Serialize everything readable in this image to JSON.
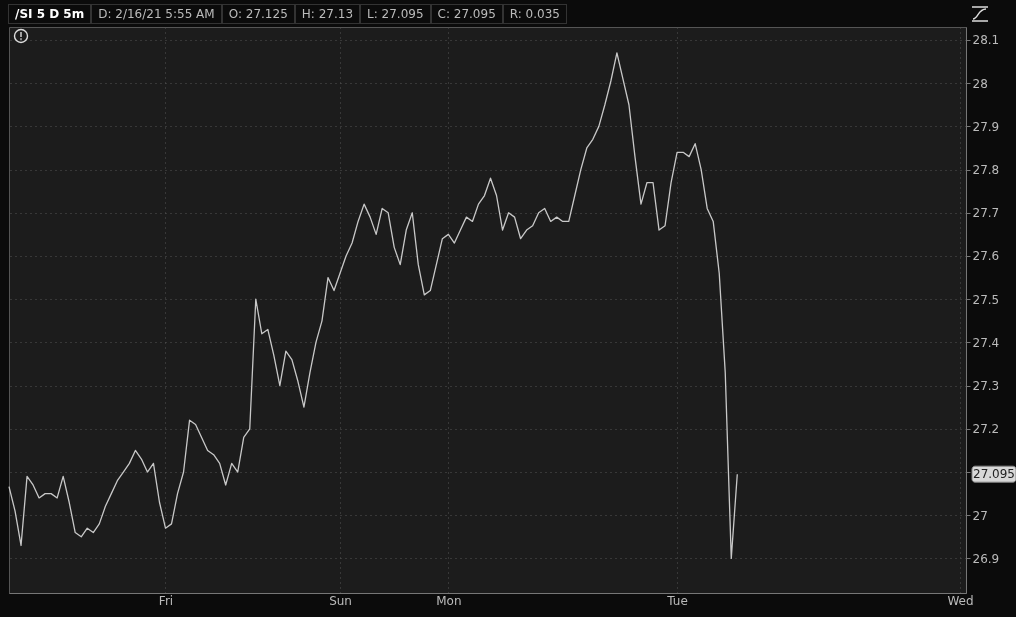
{
  "chart_data": {
    "type": "line",
    "title": "/SI 5 D 5m",
    "subtitle": "D: 2/16/21 5:55 AM  O: 27.125  H: 27.13  L: 27.095  C: 27.095  R: 0.035",
    "categories": [
      null,
      null,
      null,
      null,
      null,
      null,
      null,
      null,
      null,
      null,
      null,
      null,
      null,
      null,
      null,
      null,
      null,
      null,
      null,
      null,
      null,
      null,
      null,
      null,
      null,
      null,
      "Fri",
      null,
      null,
      null,
      null,
      null,
      null,
      null,
      null,
      null,
      null,
      null,
      null,
      null,
      null,
      null,
      null,
      null,
      null,
      null,
      null,
      null,
      null,
      null,
      null,
      null,
      null,
      null,
      null,
      "Sun",
      null,
      null,
      null,
      null,
      null,
      null,
      null,
      null,
      null,
      null,
      null,
      null,
      null,
      null,
      null,
      null,
      null,
      "Mon",
      null,
      null,
      null,
      null,
      null,
      null,
      null,
      null,
      null,
      null,
      null,
      null,
      null,
      null,
      null,
      null,
      null,
      null,
      null,
      null,
      null,
      null,
      null,
      null,
      null,
      null,
      null,
      null,
      null,
      null,
      null,
      null,
      null,
      null,
      null,
      null,
      null,
      "Tue",
      null,
      null,
      null,
      null,
      null,
      null,
      null,
      null,
      null,
      null,
      null,
      null,
      null,
      null,
      null,
      null,
      null,
      null,
      null,
      null,
      null,
      null,
      null,
      null,
      null,
      null,
      null,
      null,
      null,
      null,
      null,
      null,
      null,
      null,
      null,
      null,
      null,
      null,
      null,
      null,
      null,
      null,
      null,
      null,
      null,
      null,
      "Wed",
      null
    ],
    "series": [
      {
        "color": "#c8c8c8",
        "values": [
          27.066,
          27.01,
          26.93,
          27.09,
          27.07,
          27.04,
          27.05,
          27.05,
          27.04,
          27.09,
          27.03,
          26.96,
          26.95,
          26.97,
          26.96,
          26.98,
          27.02,
          27.05,
          27.08,
          27.1,
          27.12,
          27.15,
          27.13,
          27.1,
          27.12,
          27.03,
          26.97,
          26.98,
          27.05,
          27.1,
          27.22,
          27.21,
          27.18,
          27.15,
          27.14,
          27.12,
          27.07,
          27.12,
          27.1,
          27.18,
          27.2,
          27.5,
          27.42,
          27.43,
          27.37,
          27.3,
          27.38,
          27.36,
          27.31,
          27.25,
          27.33,
          27.4,
          27.45,
          27.55,
          27.52,
          27.56,
          27.6,
          27.63,
          27.68,
          27.72,
          27.69,
          27.65,
          27.71,
          27.7,
          27.62,
          27.58,
          27.66,
          27.7,
          27.58,
          27.51,
          27.52,
          27.58,
          27.64,
          27.65,
          27.63,
          27.66,
          27.69,
          27.68,
          27.72,
          27.74,
          27.78,
          27.74,
          27.66,
          27.7,
          27.69,
          27.64,
          27.66,
          27.67,
          27.7,
          27.71,
          27.68,
          27.69,
          27.68,
          27.68,
          27.74,
          27.8,
          27.85,
          27.87,
          27.9,
          27.95,
          28.005,
          28.07,
          28.01,
          27.95,
          27.83,
          27.72,
          27.77,
          27.77,
          27.66,
          27.67,
          27.77,
          27.84,
          27.84,
          27.83,
          27.86,
          27.8,
          27.71,
          27.68,
          27.56,
          27.33,
          26.9,
          27.095,
          null,
          null,
          null,
          null,
          null,
          null,
          null,
          null,
          null,
          null,
          null,
          null,
          null,
          null,
          null,
          null,
          null,
          null,
          null,
          null,
          null,
          null,
          null,
          null,
          null,
          null,
          null,
          null,
          null,
          null,
          null,
          null,
          null,
          null,
          null,
          null,
          null,
          null
        ]
      }
    ],
    "ylim": [
      26.82,
      28.13
    ],
    "yticks": [
      26.9,
      {
        "value": 27,
        "label": "27"
      },
      {
        "value": 27.1,
        "label": null
      },
      27.2,
      27.3,
      27.4,
      27.5,
      27.6,
      27.7,
      27.8,
      27.9,
      {
        "value": 28,
        "label": "28"
      },
      28.1
    ],
    "annotations": [
      "27.095"
    ],
    "grid": true,
    "line_style": "solid",
    "marker": "none"
  }
}
